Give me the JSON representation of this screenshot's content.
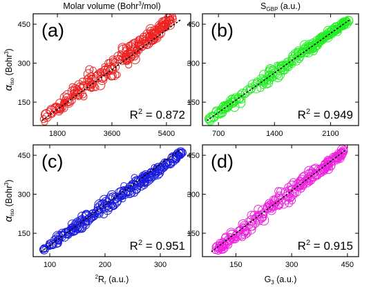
{
  "chart_data": [
    {
      "type": "scatter",
      "panel": "(a)",
      "xlabel": "Molar volume (Bohr³/mol)",
      "xlabel_parts": {
        "main": "Molar volume (Bohr",
        "sup": "3",
        "tail": "/mol)"
      },
      "ylabel_parts": {
        "symbol": "α",
        "sub": "iso",
        "unit_main": " (Bohr",
        "unit_sup": "3",
        "unit_tail": ")"
      },
      "xlim": [
        1000,
        6200
      ],
      "ylim": [
        60,
        490
      ],
      "xticks": [
        1800,
        3600,
        5400
      ],
      "yticks": [
        150,
        300,
        450
      ],
      "r2": {
        "label": "R",
        "sup": "2",
        "value": " = 0.872"
      },
      "color": "#ee2222",
      "trend": {
        "x": [
          1300,
          5900
        ],
        "y": [
          80,
          470
        ]
      },
      "sample": {
        "start_x": 1350,
        "end_x": 5600,
        "start_y": 85,
        "end_y": 470,
        "count": 230,
        "spread": 32
      }
    },
    {
      "type": "scatter",
      "panel": "(b)",
      "xlabel": "S_GBP (a.u.)",
      "xlabel_parts": {
        "main": "S",
        "sub": "GBP",
        "tail": " (a.u.)"
      },
      "xlim": [
        500,
        2450
      ],
      "ylim": [
        60,
        490
      ],
      "xticks": [
        700,
        1400,
        2100
      ],
      "yticks": [
        150,
        300,
        450
      ],
      "r2": {
        "label": "R",
        "sup": "2",
        "value": " = 0.949"
      },
      "color": "#22ee22",
      "trend": {
        "x": [
          560,
          2330
        ],
        "y": [
          80,
          465
        ]
      },
      "sample": {
        "start_x": 580,
        "end_x": 2330,
        "start_y": 85,
        "end_y": 465,
        "count": 230,
        "spread": 17
      }
    },
    {
      "type": "scatter",
      "panel": "(c)",
      "xlabel": "²R_r (a.u.)",
      "xlabel_parts": {
        "pre": "2",
        "main": "R",
        "sub": "r",
        "tail": " (a.u.)"
      },
      "ylabel_parts": {
        "symbol": "α",
        "sub": "iso",
        "unit_main": " (Bohr",
        "unit_sup": "3",
        "unit_tail": ")"
      },
      "xlim": [
        70,
        355
      ],
      "ylim": [
        60,
        490
      ],
      "xticks": [
        100,
        200,
        300
      ],
      "yticks": [
        150,
        300,
        450
      ],
      "r2": {
        "label": "R",
        "sup": "2",
        "value": " = 0.951"
      },
      "color": "#1a1add",
      "trend": {
        "x": [
          85,
          335
        ],
        "y": [
          80,
          470
        ]
      },
      "sample": {
        "start_x": 88,
        "end_x": 340,
        "start_y": 88,
        "end_y": 460,
        "count": 230,
        "spread": 17
      }
    },
    {
      "type": "scatter",
      "panel": "(d)",
      "xlabel": "G₃ (a.u.)",
      "xlabel_parts": {
        "main": "G",
        "sub": "3",
        "tail": " (a.u.)"
      },
      "xlim": [
        60,
        480
      ],
      "ylim": [
        60,
        490
      ],
      "xticks": [
        150,
        300,
        450
      ],
      "yticks": [
        150,
        300,
        450
      ],
      "r2": {
        "label": "R",
        "sup": "2",
        "value": " = 0.915"
      },
      "color": "#ee22dd",
      "trend": {
        "x": [
          85,
          445
        ],
        "y": [
          80,
          470
        ]
      },
      "sample": {
        "start_x": 95,
        "end_x": 440,
        "start_y": 85,
        "end_y": 465,
        "count": 230,
        "spread": 25
      }
    }
  ]
}
